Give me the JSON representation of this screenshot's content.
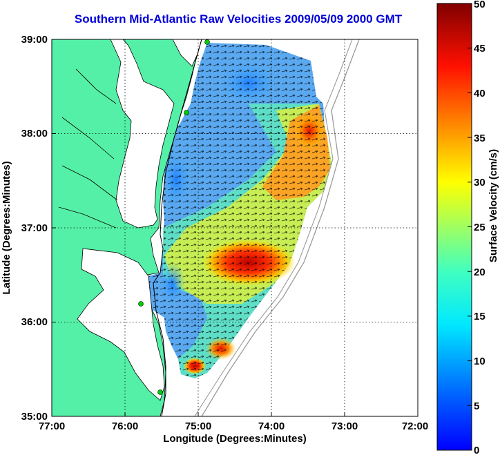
{
  "title": "Southern Mid-Atlantic Raw Velocities 2009/05/09 2000 GMT",
  "map": {
    "xlabel": "Longitude (Degrees:Minutes)",
    "ylabel": "Latitude (Degrees:Minutes)",
    "x_ticks": [
      "77:00",
      "76:00",
      "75:00",
      "74:00",
      "73:00",
      "72:00"
    ],
    "y_ticks": [
      "39:00",
      "38:00",
      "37:00",
      "36:00",
      "35:00"
    ],
    "xlim": [
      -77,
      -72
    ],
    "ylim": [
      35,
      39
    ],
    "grid": "dotted",
    "land_color": "#55f0a8",
    "coast_color": "#000000"
  },
  "colorbar": {
    "label": "Surface Velocity (cm/s)",
    "ticks": [
      "50",
      "45",
      "40",
      "35",
      "30",
      "25",
      "20",
      "15",
      "10",
      "5",
      "0"
    ],
    "range": [
      0,
      50
    ],
    "colormap": "jet"
  }
}
